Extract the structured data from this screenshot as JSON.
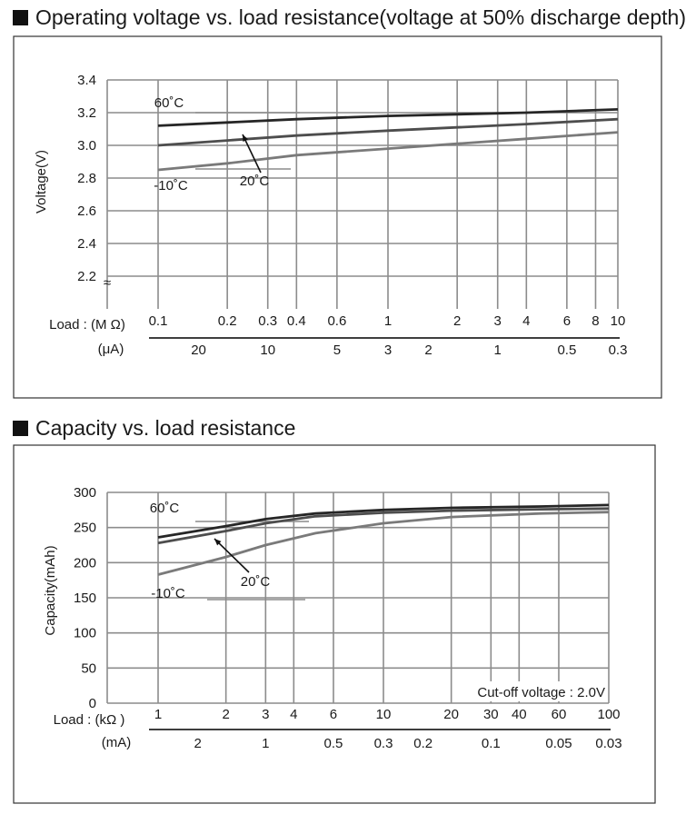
{
  "titles": {
    "chart1": "Operating voltage vs. load resistance(voltage at 50% discharge depth)",
    "chart2": "Capacity vs. load resistance"
  },
  "colors": {
    "c60": "#262626",
    "c20": "#4d4d4d",
    "cm10": "#7a7a7a",
    "grid": "#8c8c8c"
  },
  "chart_data": [
    {
      "type": "line",
      "title": "Operating voltage vs. load resistance(voltage at 50% discharge depth)",
      "ylabel": "Voltage(V)",
      "xlabel": "Load : (M Ω)",
      "xlabel2": "(μA)",
      "xscale": "log",
      "xlim": [
        0.1,
        10
      ],
      "ylim": [
        2.0,
        3.4
      ],
      "axis_break": "≈",
      "yticks": [
        "3.4",
        "3.2",
        "3.0",
        "2.8",
        "2.6",
        "2.4",
        "2.2"
      ],
      "ytick_values": [
        3.4,
        3.2,
        3.0,
        2.8,
        2.6,
        2.4,
        2.2
      ],
      "xticks": [
        "0.1",
        "0.2",
        "0.3",
        "0.4",
        "0.6",
        "1",
        "2",
        "3",
        "4",
        "6",
        "8",
        "10"
      ],
      "xtick_values": [
        0.1,
        0.2,
        0.3,
        0.4,
        0.6,
        1,
        2,
        3,
        4,
        6,
        8,
        10
      ],
      "current_ticks": [
        "20",
        "10",
        "5",
        "3",
        "2",
        "1",
        "0.5",
        "0.3"
      ],
      "current_tick_values": [
        0.15,
        0.3,
        0.6,
        1,
        1.5,
        3,
        6,
        10
      ],
      "series": [
        {
          "name": "60˚C",
          "x": [
            0.1,
            0.2,
            0.4,
            1,
            2,
            4,
            10
          ],
          "y": [
            3.12,
            3.14,
            3.16,
            3.18,
            3.19,
            3.2,
            3.22
          ]
        },
        {
          "name": "20˚C",
          "x": [
            0.1,
            0.2,
            0.4,
            1,
            2,
            4,
            10
          ],
          "y": [
            3.0,
            3.03,
            3.06,
            3.09,
            3.11,
            3.13,
            3.16
          ]
        },
        {
          "name": "-10˚C",
          "x": [
            0.1,
            0.2,
            0.4,
            1,
            2,
            4,
            10
          ],
          "y": [
            2.85,
            2.89,
            2.94,
            2.98,
            3.01,
            3.04,
            3.08
          ]
        }
      ]
    },
    {
      "type": "line",
      "title": "Capacity vs. load resistance",
      "ylabel": "Capacity(mAh)",
      "xlabel": "Load : (kΩ )",
      "xlabel2": "(mA)",
      "xscale": "log",
      "xlim": [
        1,
        100
      ],
      "ylim": [
        0,
        300
      ],
      "annotation": "Cut-off voltage : 2.0V",
      "yticks": [
        "300",
        "250",
        "200",
        "150",
        "100",
        "50",
        "0"
      ],
      "ytick_values": [
        300,
        250,
        200,
        150,
        100,
        50,
        0
      ],
      "xticks": [
        "1",
        "2",
        "3",
        "4",
        "6",
        "10",
        "20",
        "30",
        "40",
        "60",
        "100"
      ],
      "xtick_values": [
        1,
        2,
        3,
        4,
        6,
        10,
        20,
        30,
        40,
        60,
        100
      ],
      "current_ticks": [
        "2",
        "1",
        "0.5",
        "0.3",
        "0.2",
        "0.1",
        "0.05",
        "0.03"
      ],
      "current_tick_values": [
        1.5,
        3,
        6,
        10,
        15,
        30,
        60,
        100
      ],
      "series": [
        {
          "name": "60˚C",
          "x": [
            1,
            2,
            3,
            5,
            10,
            20,
            50,
            100
          ],
          "y": [
            236,
            252,
            262,
            270,
            275,
            278,
            280,
            282
          ]
        },
        {
          "name": "20˚C",
          "x": [
            1,
            2,
            3,
            5,
            10,
            20,
            50,
            100
          ],
          "y": [
            228,
            245,
            256,
            266,
            271,
            274,
            276,
            277
          ]
        },
        {
          "name": "-10˚C",
          "x": [
            1,
            2,
            3,
            5,
            10,
            20,
            50,
            100
          ],
          "y": [
            183,
            208,
            225,
            242,
            256,
            265,
            270,
            272
          ]
        }
      ]
    }
  ]
}
